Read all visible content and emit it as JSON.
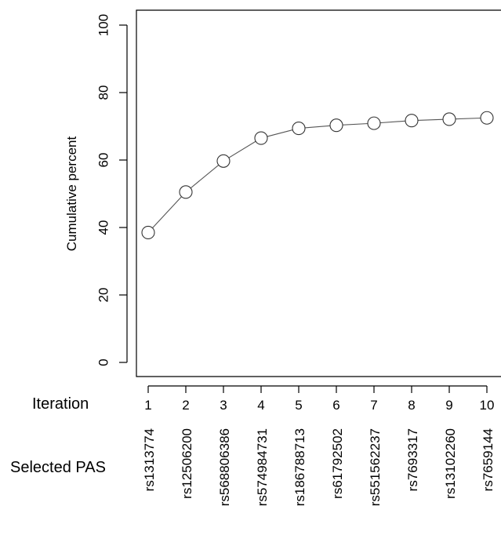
{
  "chart_data": {
    "type": "line",
    "title": "",
    "ylabel": "Cumulative percent",
    "xlabel": "",
    "ylim": [
      -4,
      104
    ],
    "xlim": [
      0.6,
      10.4
    ],
    "yticks": [
      0,
      20,
      40,
      60,
      80,
      100
    ],
    "grid": false,
    "legend": "none",
    "row_labels": {
      "iteration": "Iteration",
      "selected": "Selected PAS"
    },
    "x": [
      1,
      2,
      3,
      4,
      5,
      6,
      7,
      8,
      9,
      10
    ],
    "x_tick_labels": [
      "1",
      "2",
      "3",
      "4",
      "5",
      "6",
      "7",
      "8",
      "9",
      "10"
    ],
    "selected_pas": [
      "rs1313774",
      "rs12506200",
      "rs568806386",
      "rs574984731",
      "rs186788713",
      "rs61792502",
      "rs551562237",
      "rs7693317",
      "rs13102260",
      "rs7659144"
    ],
    "series": [
      {
        "values": [
          38.5,
          50.5,
          59.7,
          66.5,
          69.4,
          70.3,
          70.9,
          71.7,
          72.1,
          72.5
        ],
        "marker": "open-circle",
        "color": "#555555"
      }
    ]
  }
}
